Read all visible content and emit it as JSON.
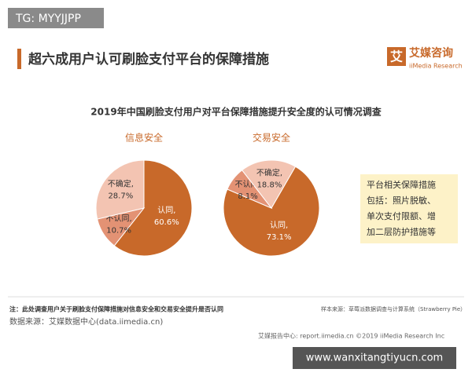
{
  "watermark_top": "TG: MYYJJPP",
  "header": {
    "title": "超六成用户认可刷脸支付平台的保障措施",
    "logo_mark": "艾",
    "logo_name": "艾媒咨询",
    "logo_sub": "iiMedia Research"
  },
  "subtitle": "2019年中国刷脸支付用户对平台保障措施提升安全度的认可情况调查",
  "chart_data": [
    {
      "type": "pie",
      "title": "信息安全",
      "categories": [
        "认同,",
        "不认同,",
        "不确定,"
      ],
      "values": [
        60.6,
        10.7,
        28.7
      ],
      "value_labels": [
        "60.6%",
        "10.7%",
        "28.7%"
      ],
      "colors": [
        "#c8692a",
        "#e39274",
        "#f3c4b2"
      ]
    },
    {
      "type": "pie",
      "title": "交易安全",
      "categories": [
        "认同,",
        "不认同,",
        "不确定,"
      ],
      "values": [
        73.1,
        8.1,
        18.8
      ],
      "value_labels": [
        "73.1%",
        "8.1%",
        "18.8%"
      ],
      "colors": [
        "#c8692a",
        "#e39274",
        "#f3c4b2"
      ]
    }
  ],
  "note_box": [
    "平台相关保障措施",
    "包括：照片脱敏、",
    "单次支付限额、增",
    "加二层防护措施等"
  ],
  "footnote": "注：此处调查用户关于刷脸支付保障措施对信息安全和交易安全提升是否认同",
  "source": "数据来源：艾媒数据中心(data.iimedia.cn)",
  "sample_source": "样本来源：草莓派数据调查与计算系统（Strawberry Pie）",
  "footer": "艾媒报告中心: report.iimedia.cn  ©2019  iiMedia Research Inc",
  "watermark_bottom": "www.wanxitangtiyucn.com"
}
